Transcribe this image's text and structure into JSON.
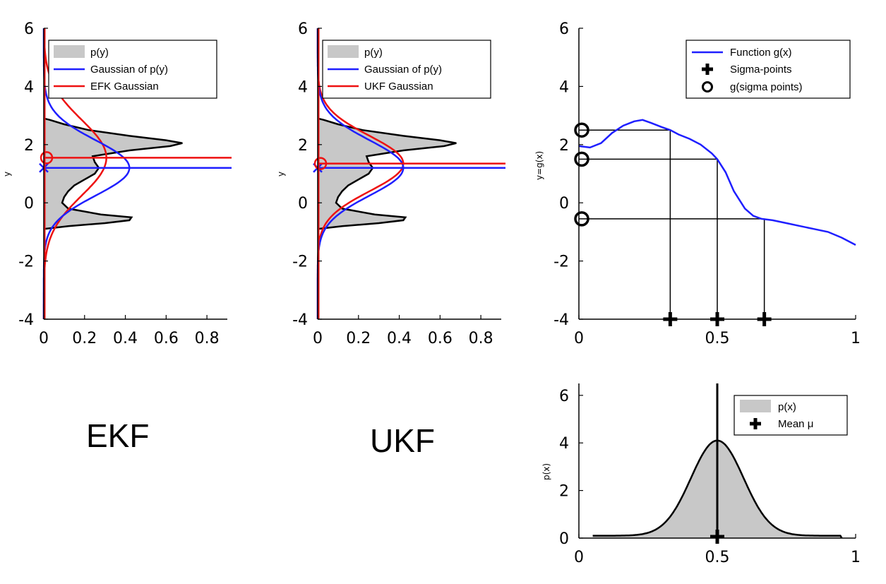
{
  "captions": {
    "ekf": "EKF",
    "ukf": "UKF"
  },
  "colors": {
    "blue": "#1f1fff",
    "red": "#ee1111",
    "fill": "#c8c8c8"
  },
  "chart_data": [
    {
      "id": "ekf",
      "type": "line",
      "orientation": "density-along-y",
      "ylabel": "y",
      "xlim": [
        0,
        0.9
      ],
      "ylim": [
        -4,
        6
      ],
      "xticks": [
        "0",
        "0.2",
        "0.4",
        "0.6",
        "0.8"
      ],
      "yticks": [
        "-4",
        "-2",
        "0",
        "2",
        "4",
        "6"
      ],
      "legend": [
        "p(y)",
        "Gaussian of p(y)",
        "EFK Gaussian"
      ],
      "legend_position": "top-right",
      "py": {
        "y": [
          -0.9,
          -0.8,
          -0.7,
          -0.6,
          -0.5,
          -0.4,
          -0.2,
          0,
          0.2,
          0.4,
          0.6,
          0.8,
          1,
          1.2,
          1.4,
          1.6,
          1.8,
          1.95,
          2.05,
          2.15,
          2.3,
          2.5,
          2.7,
          2.85,
          2.9
        ],
        "density": [
          0,
          0.12,
          0.3,
          0.42,
          0.43,
          0.28,
          0.12,
          0.09,
          0.1,
          0.12,
          0.15,
          0.2,
          0.25,
          0.27,
          0.25,
          0.24,
          0.42,
          0.62,
          0.68,
          0.6,
          0.42,
          0.22,
          0.1,
          0.03,
          0
        ]
      },
      "gaussian_of_py": {
        "mean": 1.2,
        "sd": 0.95
      },
      "ekf_gaussian": {
        "mean": 1.55,
        "sd": 1.3
      },
      "mean_lines": [
        {
          "series": "blue",
          "y": 1.2,
          "marker": "x"
        },
        {
          "series": "red",
          "y": 1.55,
          "marker": "o"
        }
      ]
    },
    {
      "id": "ukf",
      "type": "line",
      "orientation": "density-along-y",
      "ylabel": "y",
      "xlim": [
        0,
        0.9
      ],
      "ylim": [
        -4,
        6
      ],
      "xticks": [
        "0",
        "0.2",
        "0.4",
        "0.6",
        "0.8"
      ],
      "yticks": [
        "-4",
        "-2",
        "0",
        "2",
        "4",
        "6"
      ],
      "legend": [
        "p(y)",
        "Gaussian of p(y)",
        "UKF Gaussian"
      ],
      "legend_position": "top-right",
      "py": {
        "y": [
          -0.9,
          -0.8,
          -0.7,
          -0.6,
          -0.5,
          -0.4,
          -0.2,
          0,
          0.2,
          0.4,
          0.6,
          0.8,
          1,
          1.2,
          1.4,
          1.6,
          1.8,
          1.95,
          2.05,
          2.15,
          2.3,
          2.5,
          2.7,
          2.85,
          2.9
        ],
        "density": [
          0,
          0.12,
          0.3,
          0.42,
          0.43,
          0.28,
          0.12,
          0.09,
          0.1,
          0.12,
          0.15,
          0.2,
          0.25,
          0.27,
          0.25,
          0.24,
          0.42,
          0.62,
          0.68,
          0.6,
          0.42,
          0.22,
          0.1,
          0.03,
          0
        ]
      },
      "gaussian_of_py": {
        "mean": 1.2,
        "sd": 0.95
      },
      "ukf_gaussian": {
        "mean": 1.35,
        "sd": 0.95
      },
      "mean_lines": [
        {
          "series": "blue",
          "y": 1.2,
          "marker": "x"
        },
        {
          "series": "red",
          "y": 1.35,
          "marker": "o"
        }
      ]
    },
    {
      "id": "transform",
      "type": "line",
      "ylabel": "y=g(x)",
      "xlim": [
        0,
        1
      ],
      "ylim": [
        -4,
        6
      ],
      "xticks": [
        "0",
        "0.5",
        "1"
      ],
      "yticks": [
        "-4",
        "-2",
        "0",
        "2",
        "4",
        "6"
      ],
      "legend": [
        "Function g(x)",
        "Sigma-points",
        "g(sigma points)"
      ],
      "legend_position": "top-right",
      "function": {
        "x": [
          0,
          0.04,
          0.08,
          0.12,
          0.16,
          0.2,
          0.23,
          0.26,
          0.3,
          0.33,
          0.36,
          0.4,
          0.44,
          0.48,
          0.5,
          0.53,
          0.56,
          0.6,
          0.63,
          0.66,
          0.7,
          0.75,
          0.8,
          0.85,
          0.9,
          0.95,
          1
        ],
        "y": [
          1.95,
          1.9,
          2.05,
          2.4,
          2.65,
          2.8,
          2.85,
          2.75,
          2.6,
          2.5,
          2.35,
          2.2,
          2,
          1.7,
          1.5,
          1.05,
          0.4,
          -0.2,
          -0.45,
          -0.55,
          -0.6,
          -0.7,
          -0.8,
          -0.9,
          -1,
          -1.2,
          -1.45
        ]
      },
      "sigma_points": [
        0.33,
        0.5,
        0.67
      ],
      "g_sigma_points": [
        2.5,
        1.5,
        -0.55
      ]
    },
    {
      "id": "prior",
      "type": "area",
      "ylabel": "p(x)",
      "xlim": [
        0,
        1
      ],
      "ylim": [
        0,
        6.5
      ],
      "xticks": [
        "0",
        "0.5",
        "1"
      ],
      "yticks": [
        "0",
        "2",
        "4",
        "6"
      ],
      "legend": [
        "p(x)",
        "Mean μ"
      ],
      "legend_position": "top-right",
      "distribution": {
        "mean": 0.5,
        "sd": 0.095,
        "peak": 4.0,
        "tail_start": 0.05,
        "tail_end": 0.95
      },
      "mean": 0.5
    }
  ]
}
